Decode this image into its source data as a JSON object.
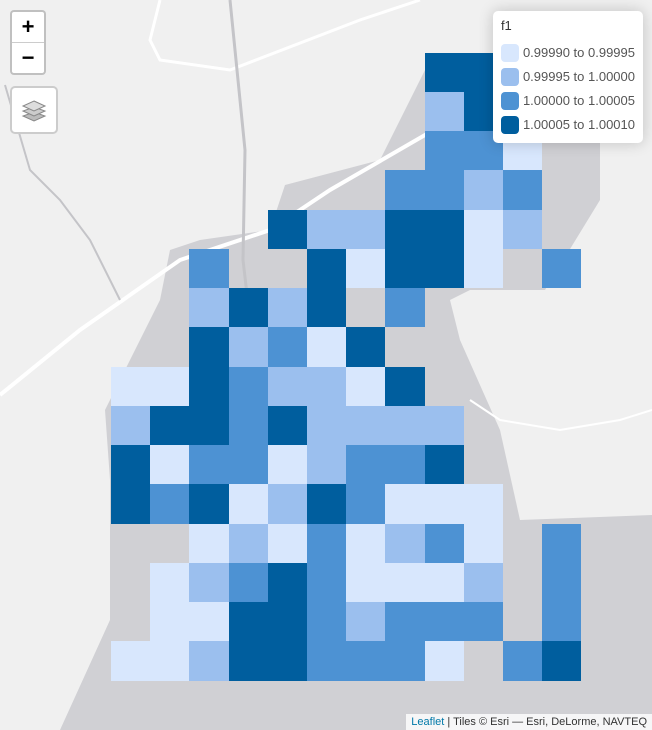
{
  "controls": {
    "zoom_in": "+",
    "zoom_out": "−",
    "layers_icon": "layers-icon"
  },
  "legend": {
    "title": "f1",
    "items": [
      {
        "label": "0.99990 to 0.99995",
        "color": "#d8e7fd"
      },
      {
        "label": "0.99995 to 1.00000",
        "color": "#9bbfee"
      },
      {
        "label": "1.00000 to 1.00005",
        "color": "#4d92d3"
      },
      {
        "label": "1.00005 to 1.00010",
        "color": "#005e9e"
      }
    ]
  },
  "attribution": {
    "link": "Leaflet",
    "text": " | Tiles © Esri — Esri, DeLorme, NAVTEQ"
  },
  "basemap_colors": {
    "land": "#f0f0f0",
    "water": "#d0d0d4",
    "road": "#ffffff"
  },
  "grid": [
    "........444.",
    "........243.",
    "........331.",
    ".......3323.",
    "....4224412.",
    "..3..41441 3",
    "..2424 3....",
    "..42314.....",
    "11432214....",
    "244342222...",
    "413312334...",
    "4341243111..",
    "..12131231 3",
    ".123431112 3",
    ".114432333 3",
    "112443331 34"
  ]
}
